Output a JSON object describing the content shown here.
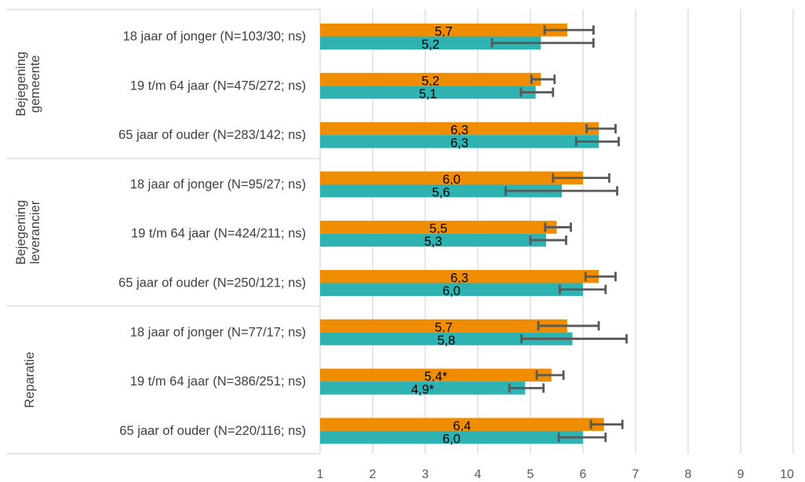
{
  "chart_data": {
    "type": "bar",
    "orientation": "horizontal",
    "xlim": [
      1,
      10
    ],
    "x_ticks": [
      "1",
      "2",
      "3",
      "4",
      "5",
      "6",
      "7",
      "8",
      "9",
      "10"
    ],
    "grid": "vertical",
    "colors": {
      "series_a": "#f08c00",
      "series_b": "#2fb2b2",
      "error_bar": "#595959",
      "grid": "#d9d9d9"
    },
    "groups": [
      {
        "label": "Bejegening gemeente",
        "label_lines": [
          "Bejegening",
          "gemeente"
        ],
        "categories": [
          {
            "label": "18 jaar of jonger (N=103/30; ns)",
            "bars": [
              {
                "value": 5.7,
                "label": "5,7",
                "err": [
                  5.27,
                  6.2
                ]
              },
              {
                "value": 5.2,
                "label": "5,2",
                "err": [
                  4.27,
                  6.2
                ]
              }
            ]
          },
          {
            "label": "19 t/m 64 jaar (N=475/272; ns)",
            "bars": [
              {
                "value": 5.2,
                "label": "5,2",
                "err": [
                  5.02,
                  5.46
                ]
              },
              {
                "value": 5.1,
                "label": "5,1",
                "err": [
                  4.82,
                  5.43
                ]
              }
            ]
          },
          {
            "label": "65 jaar of ouder (N=283/142; ns)",
            "bars": [
              {
                "value": 6.3,
                "label": "6,3",
                "err": [
                  6.07,
                  6.62
                ]
              },
              {
                "value": 6.3,
                "label": "6,3",
                "err": [
                  5.87,
                  6.68
                ]
              }
            ]
          }
        ]
      },
      {
        "label": "Bejegening leverancier",
        "label_lines": [
          "Bejegening",
          "leverancier"
        ],
        "categories": [
          {
            "label": "18 jaar of jonger (N=95/27; ns)",
            "bars": [
              {
                "value": 6.0,
                "label": "6,0",
                "err": [
                  5.43,
                  6.5
                ]
              },
              {
                "value": 5.6,
                "label": "5,6",
                "err": [
                  4.53,
                  6.65
                ]
              }
            ]
          },
          {
            "label": "19 t/m 64 jaar (N=424/211; ns)",
            "bars": [
              {
                "value": 5.5,
                "label": "5,5",
                "err": [
                  5.28,
                  5.77
                ]
              },
              {
                "value": 5.3,
                "label": "5,3",
                "err": [
                  5.0,
                  5.68
                ]
              }
            ]
          },
          {
            "label": "65 jaar of ouder (N=250/121; ns)",
            "bars": [
              {
                "value": 6.3,
                "label": "6,3",
                "err": [
                  6.05,
                  6.62
                ]
              },
              {
                "value": 6.0,
                "label": "6,0",
                "err": [
                  5.56,
                  6.43
                ]
              }
            ]
          }
        ]
      },
      {
        "label": "Reparatie",
        "label_lines": [
          "Reparatie"
        ],
        "categories": [
          {
            "label": "18 jaar of jonger (N=77/17; ns)",
            "bars": [
              {
                "value": 5.7,
                "label": "5,7",
                "err": [
                  5.15,
                  6.3
                ]
              },
              {
                "value": 5.8,
                "label": "5,8",
                "err": [
                  4.83,
                  6.83
                ]
              }
            ]
          },
          {
            "label": "19 t/m 64 jaar (N=386/251; ns)",
            "bars": [
              {
                "value": 5.4,
                "label": "5,4*",
                "err": [
                  5.12,
                  5.63
                ]
              },
              {
                "value": 4.9,
                "label": "4,9*",
                "err": [
                  4.6,
                  5.25
                ]
              }
            ]
          },
          {
            "label": "65 jaar of ouder (N=220/116; ns)",
            "bars": [
              {
                "value": 6.4,
                "label": "6,4",
                "err": [
                  6.15,
                  6.75
                ]
              },
              {
                "value": 6.0,
                "label": "6,0",
                "err": [
                  5.54,
                  6.43
                ]
              }
            ]
          }
        ]
      }
    ]
  }
}
